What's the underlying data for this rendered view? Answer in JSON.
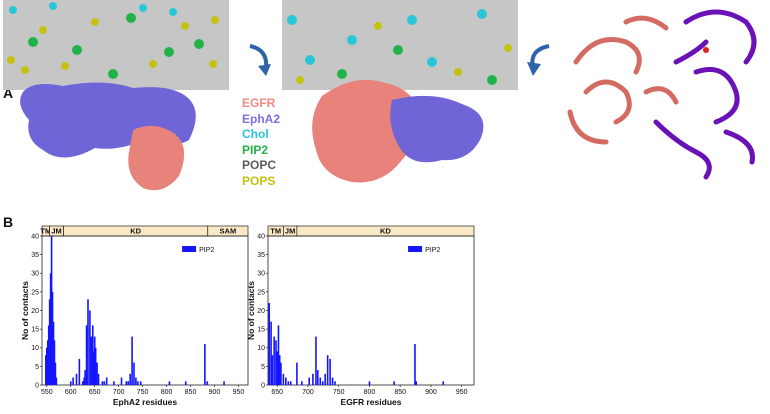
{
  "panel_a": {
    "letter": "A",
    "legend": [
      {
        "label": "EGFR",
        "color": "#f08a80"
      },
      {
        "label": "EphA2",
        "color": "#7b70e0"
      },
      {
        "label": "Chol",
        "color": "#29c6d8"
      },
      {
        "label": "PIP2",
        "color": "#22b24a"
      },
      {
        "label": "POPC",
        "color": "#5a5a5a"
      },
      {
        "label": "POPS",
        "color": "#c6c012"
      }
    ],
    "arrows": [
      "rotate-arrow-icon",
      "rotate-arrow-icon"
    ]
  },
  "panel_b": {
    "letter": "B"
  },
  "colors": {
    "bar": "#1414ff",
    "domain_bg": "#fbe9c6",
    "egfr": "#e07a72",
    "epha2": "#6a11b8"
  },
  "chart_data": [
    {
      "type": "bar",
      "title": "",
      "xlabel": "EphA2 residues",
      "ylabel": "No of contacts",
      "xlim": [
        540,
        970
      ],
      "ylim": [
        0,
        40
      ],
      "xticks": [
        550,
        600,
        650,
        700,
        750,
        800,
        850,
        900,
        950
      ],
      "yticks": [
        0,
        5,
        10,
        15,
        20,
        25,
        30,
        35,
        40
      ],
      "domains": [
        {
          "label": "TM",
          "start": 540,
          "end": 556
        },
        {
          "label": "JM",
          "start": 556,
          "end": 585
        },
        {
          "label": "KD",
          "start": 585,
          "end": 886
        },
        {
          "label": "SAM",
          "start": 886,
          "end": 970
        }
      ],
      "series": [
        {
          "name": "PIP2",
          "x": [
            548,
            550,
            552,
            554,
            556,
            558,
            560,
            562,
            564,
            566,
            568,
            570,
            600,
            605,
            612,
            618,
            625,
            628,
            630,
            633,
            636,
            640,
            643,
            646,
            648,
            650,
            652,
            655,
            658,
            666,
            670,
            675,
            690,
            706,
            716,
            720,
            724,
            728,
            732,
            736,
            740,
            746,
            806,
            840,
            880,
            885,
            920
          ],
          "values": [
            8,
            10,
            12,
            16,
            23,
            30,
            40,
            25,
            17,
            12,
            6,
            2,
            1,
            2,
            3,
            7,
            1,
            2,
            4,
            16,
            23,
            20,
            13,
            16,
            9,
            13,
            10,
            6,
            3,
            1,
            1,
            2,
            1,
            2,
            1,
            1,
            3,
            13,
            6,
            2,
            1,
            1,
            1,
            1,
            11,
            1,
            1
          ]
        }
      ]
    },
    {
      "type": "bar",
      "title": "",
      "xlabel": "EGFR residues",
      "ylabel": "No of contacts",
      "xlim": [
        635,
        970
      ],
      "ylim": [
        0,
        40
      ],
      "xticks": [
        650,
        700,
        750,
        800,
        850,
        900,
        950
      ],
      "yticks": [
        0,
        5,
        10,
        15,
        20,
        25,
        30,
        35,
        40
      ],
      "domains": [
        {
          "label": "TM",
          "start": 635,
          "end": 660
        },
        {
          "label": "JM",
          "start": 660,
          "end": 682
        },
        {
          "label": "KD",
          "start": 682,
          "end": 970
        }
      ],
      "series": [
        {
          "name": "PIP2",
          "x": [
            637,
            640,
            642,
            645,
            648,
            650,
            652,
            654,
            656,
            660,
            664,
            668,
            672,
            682,
            690,
            702,
            708,
            713,
            716,
            720,
            724,
            728,
            732,
            736,
            740,
            744,
            800,
            840,
            874,
            876,
            920
          ],
          "values": [
            22,
            17,
            8,
            13,
            12,
            9,
            16,
            8,
            6,
            3,
            2,
            1,
            1,
            6,
            1,
            2,
            3,
            13,
            4,
            2,
            1,
            3,
            8,
            7,
            2,
            1,
            1,
            1,
            11,
            1,
            1
          ]
        }
      ]
    }
  ]
}
